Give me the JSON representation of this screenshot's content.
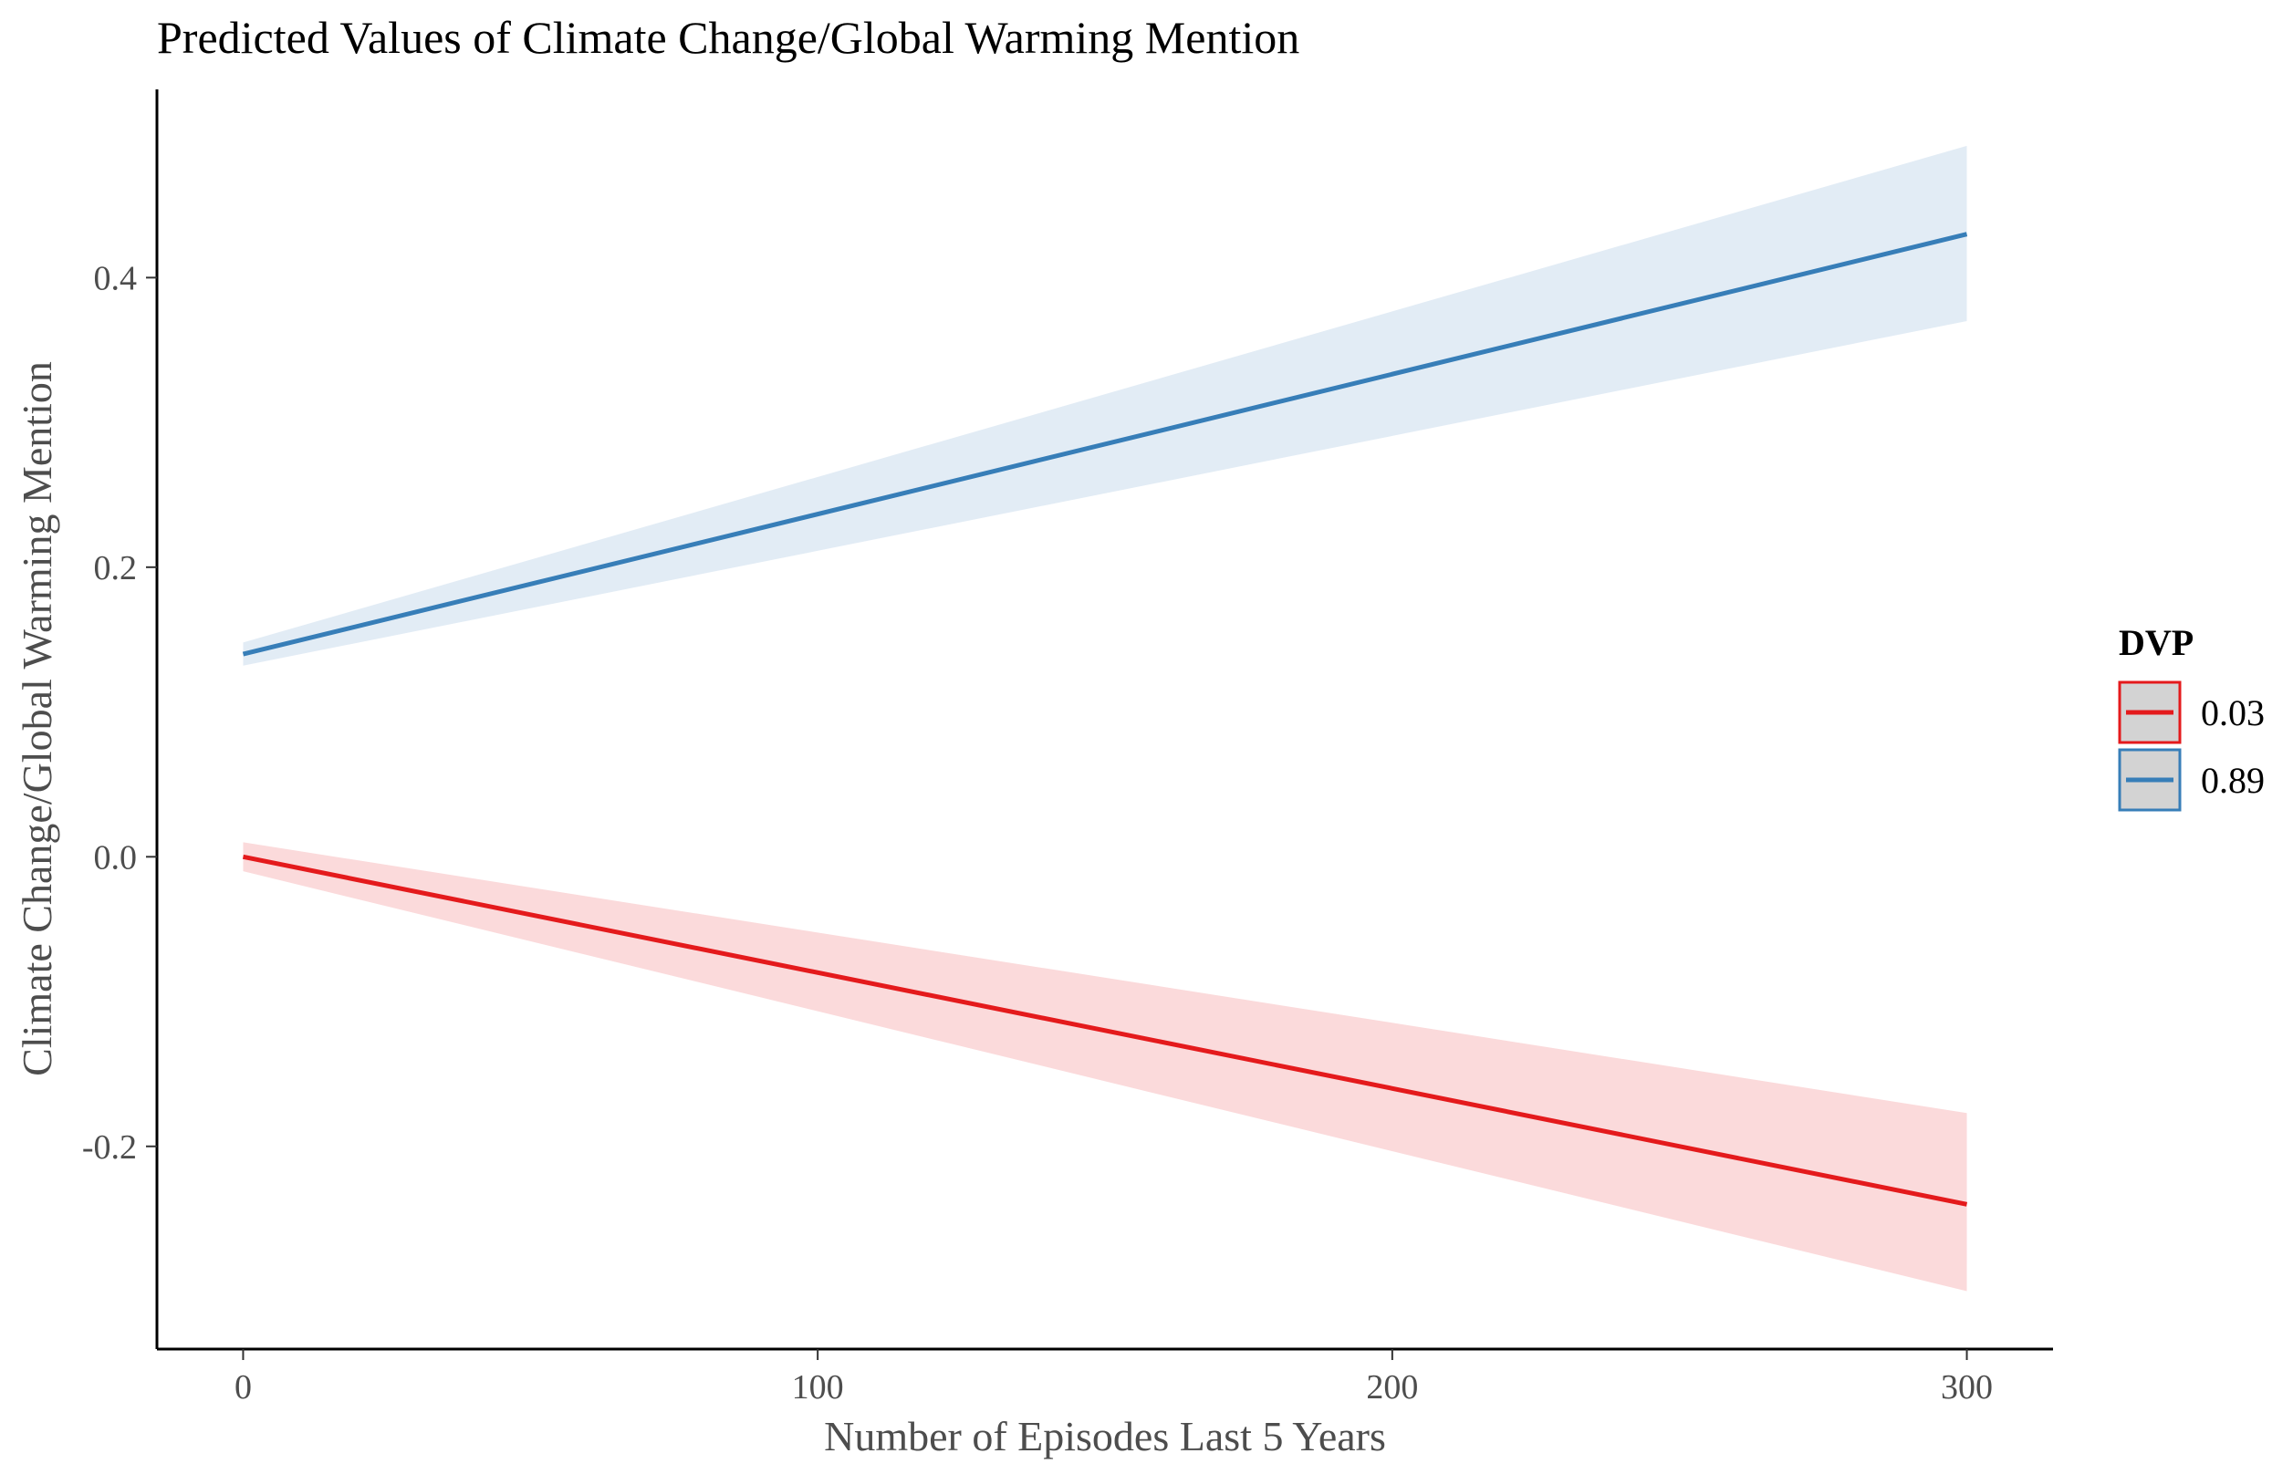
{
  "chart_data": {
    "type": "line",
    "title": "Predicted Values of Climate Change/Global Warming Mention",
    "xlabel": "Number of Episodes Last 5 Years",
    "ylabel": "Climate Change/Global Warming Mention",
    "xlim": [
      -15,
      315
    ],
    "ylim": [
      -0.34,
      0.53
    ],
    "x_ticks": [
      0,
      100,
      200,
      300
    ],
    "x_tick_labels": [
      "0",
      "100",
      "200",
      "300"
    ],
    "y_ticks": [
      -0.2,
      0.0,
      0.2,
      0.4
    ],
    "y_tick_labels": [
      "-0.2",
      "0.0",
      "0.2",
      "0.4"
    ],
    "grid": false,
    "legend": {
      "title": "DVP",
      "placement": "right"
    },
    "series": [
      {
        "name": "0.03",
        "color": "#e41a1c",
        "ribbon_color": "#fbdadb",
        "x": [
          0,
          300
        ],
        "y": [
          0.0,
          -0.24
        ],
        "lower": [
          -0.01,
          -0.3
        ],
        "upper": [
          0.01,
          -0.177
        ]
      },
      {
        "name": "0.89",
        "color": "#377eb8",
        "ribbon_color": "#e2ecf5",
        "x": [
          0,
          300
        ],
        "y": [
          0.14,
          0.43
        ],
        "lower": [
          0.132,
          0.37
        ],
        "upper": [
          0.148,
          0.491
        ]
      }
    ]
  }
}
